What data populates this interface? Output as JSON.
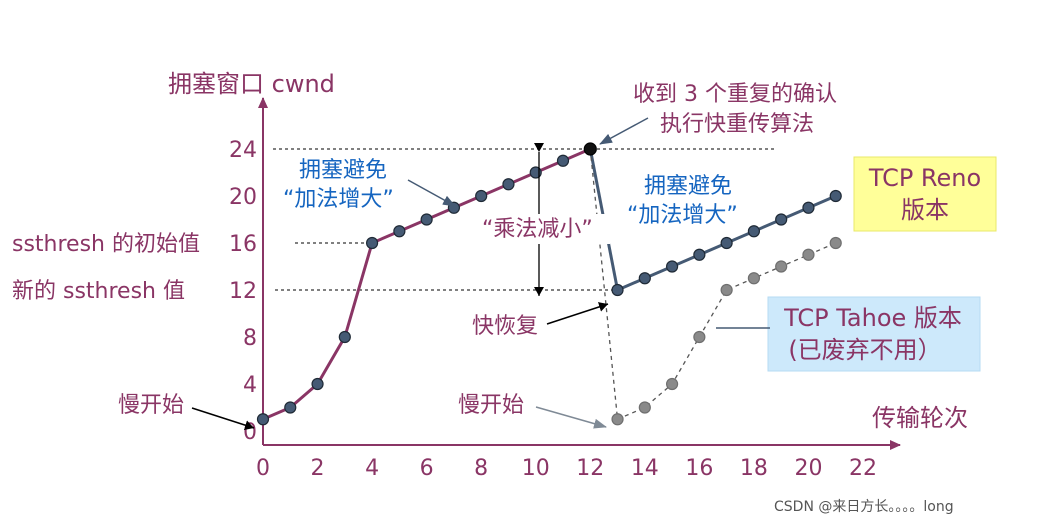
{
  "chart_data": {
    "type": "line",
    "ylabel": "拥塞窗口 cwnd",
    "xlabel": "传输轮次",
    "xlim": [
      0,
      22
    ],
    "ylim": [
      0,
      24
    ],
    "xticks": [
      "0",
      "2",
      "4",
      "6",
      "8",
      "10",
      "12",
      "14",
      "16",
      "18",
      "20",
      "22"
    ],
    "yticks": [
      "0",
      "4",
      "8",
      "12",
      "16",
      "20",
      "24"
    ],
    "yticks_extra_labels": {
      "12": "新的 ssthresh 值",
      "16": "ssthresh 的初始值"
    },
    "grid": false,
    "series": [
      {
        "name": "TCP Reno 版本",
        "color": "#8a3565",
        "segments": [
          {
            "x": [
              0,
              1,
              2,
              3,
              4,
              5,
              6,
              7,
              8,
              9,
              10,
              11,
              12
            ],
            "y": [
              1,
              2,
              4,
              8,
              16,
              17,
              18,
              19,
              20,
              21,
              22,
              23,
              24
            ],
            "style": "solid",
            "color": "#8a3565"
          },
          {
            "x": [
              12,
              13
            ],
            "y": [
              24,
              12
            ],
            "style": "solid",
            "color": "#455a74"
          },
          {
            "x": [
              13,
              14,
              15,
              16,
              17,
              18,
              19,
              20,
              21
            ],
            "y": [
              12,
              13,
              14,
              15,
              16,
              17,
              18,
              19,
              20
            ],
            "style": "solid",
            "color": "#455a74"
          }
        ]
      },
      {
        "name": "TCP Tahoe 版本（已废弃不用）",
        "color": "#8a8a8a",
        "segments": [
          {
            "x": [
              12,
              13
            ],
            "y": [
              24,
              1
            ],
            "style": "dashed",
            "color": "#555555"
          },
          {
            "x": [
              13,
              14,
              15,
              16,
              17,
              18,
              19,
              20,
              21
            ],
            "y": [
              1,
              2,
              4,
              8,
              12,
              13,
              14,
              15,
              16
            ],
            "style": "dashed",
            "color": "#555555"
          }
        ]
      }
    ],
    "reference_lines": [
      {
        "y": 24,
        "x_to": 12,
        "style": "dashed"
      },
      {
        "y": 16,
        "x_to": 4,
        "style": "dashed"
      },
      {
        "y": 12,
        "x_to": 13,
        "style": "dashed"
      }
    ],
    "annotations": {
      "slow_start_left": "慢开始",
      "slow_start_right": "慢开始",
      "ca_left_line1": "拥塞避免",
      "ca_left_line2": "“加法增大”",
      "ca_right_line1": "拥塞避免",
      "ca_right_line2": "“加法增大”",
      "mult_decrease": "“乘法减小”",
      "fast_recovery": "快恢复",
      "dup_ack_line1": "收到 3 个重复的确认",
      "dup_ack_line2": "执行快重传算法",
      "reno_box_line1": "TCP Reno",
      "reno_box_line2": "版本",
      "tahoe_box_line1": "TCP Tahoe 版本",
      "tahoe_box_line2": "(已废弃不用）"
    }
  },
  "colors": {
    "axis": "#8a3565",
    "reno_early": "#8a3565",
    "reno_late": "#455a74",
    "tahoe": "#8a8a8a",
    "blue_text": "#1565c0",
    "reno_box_bg": "#ffff99",
    "tahoe_box_bg": "#cde9fb"
  },
  "watermark": "CSDN @来日方长。。。。long"
}
